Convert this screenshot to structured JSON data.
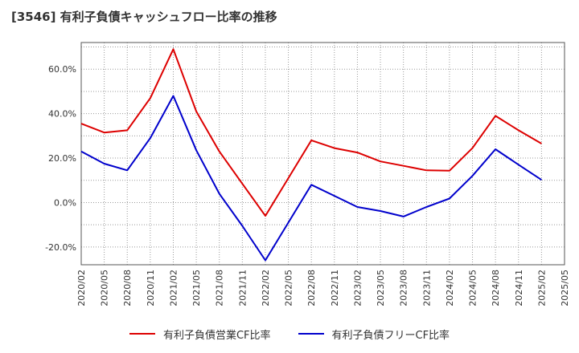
{
  "chart_data": {
    "type": "line",
    "title": "[3546]  有利子負債キャッシュフロー比率の推移",
    "x": [
      "2020/02",
      "2020/05",
      "2020/08",
      "2020/11",
      "2021/02",
      "2021/05",
      "2021/08",
      "2021/11",
      "2022/02",
      "2022/05",
      "2022/08",
      "2022/11",
      "2023/02",
      "2023/05",
      "2023/08",
      "2023/11",
      "2024/02",
      "2024/05",
      "2024/08",
      "2024/11",
      "2025/02",
      "2025/05"
    ],
    "ylim": [
      -28,
      72
    ],
    "yticks": [
      -20,
      0,
      20,
      40,
      60
    ],
    "ytick_labels": [
      "-20.0%",
      "0.0%",
      "20.0%",
      "40.0%",
      "60.0%"
    ],
    "grid": true,
    "legend_position": "bottom",
    "series": [
      {
        "name": "有利子負債営業CF比率",
        "color": "#dd0000",
        "values": [
          35.5,
          31.5,
          32.5,
          47,
          69,
          41,
          23,
          8.5,
          -6,
          11,
          28,
          24.5,
          22.5,
          18.5,
          16.5,
          14.5,
          14.3,
          24.5,
          39,
          32.5,
          26.5,
          null
        ]
      },
      {
        "name": "有利子負債フリーCF比率",
        "color": "#0000cc",
        "values": [
          23,
          17.5,
          14.5,
          29,
          48,
          23.5,
          4,
          -10.5,
          -26,
          -9,
          8,
          3,
          -2,
          -3.8,
          -6.3,
          -2,
          1.8,
          12,
          24,
          17,
          10.2,
          null
        ]
      }
    ]
  }
}
